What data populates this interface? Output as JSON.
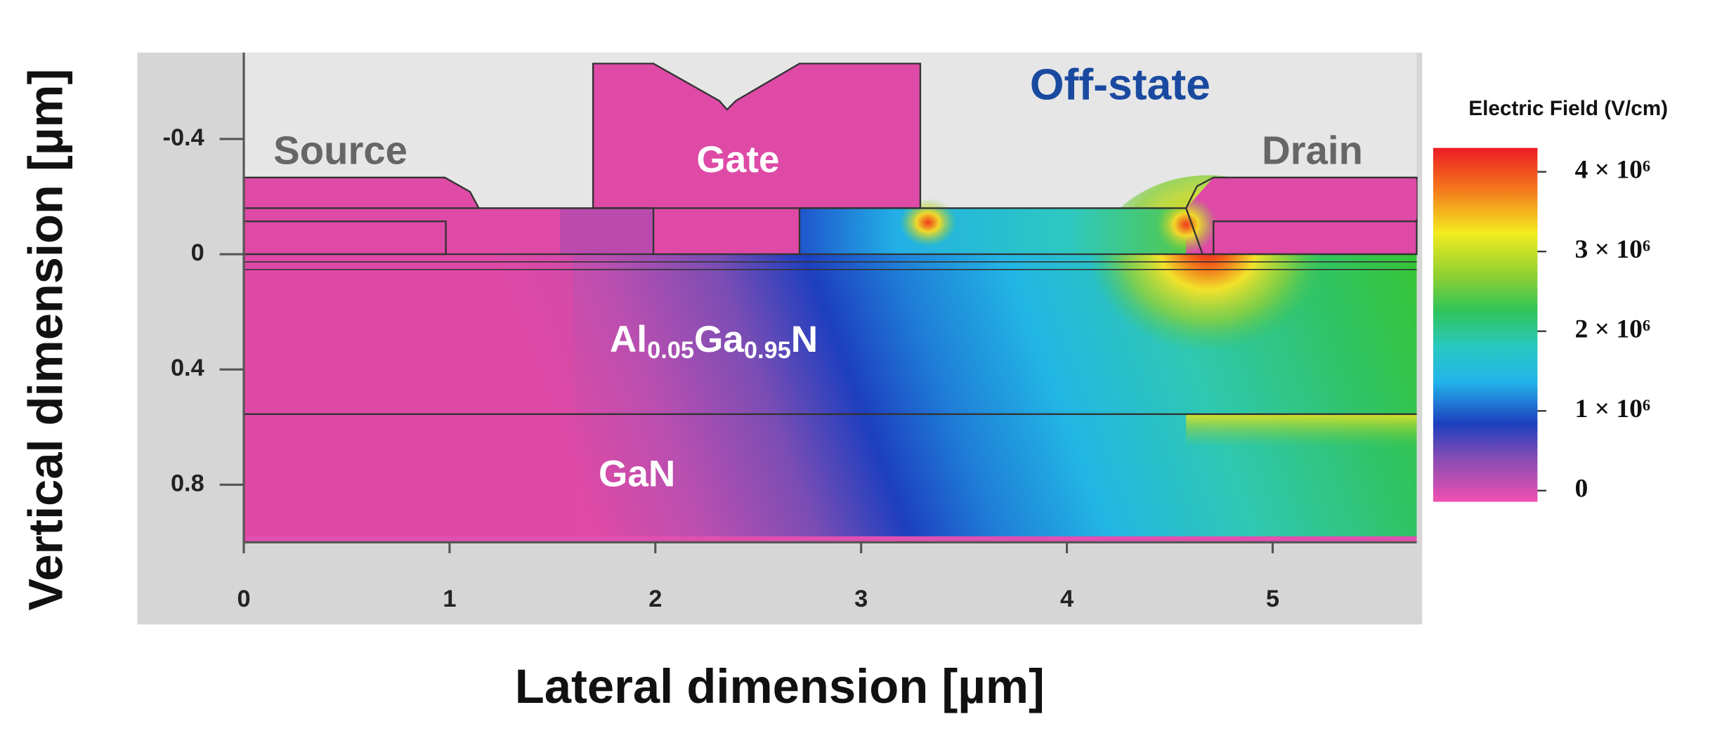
{
  "chart_data": {
    "type": "field_map",
    "title": "Off-state",
    "xlabel": "Lateral dimension [µm]",
    "ylabel": "Vertical dimension [µm]",
    "xlim": [
      0,
      5.7
    ],
    "xticks": [
      0,
      1,
      2,
      3,
      4,
      5
    ],
    "ylim": [
      -0.7,
      1.0
    ],
    "y_inverted": true,
    "yticks": [
      -0.4,
      0,
      0.4,
      0.8
    ],
    "regions": {
      "source": "Source",
      "gate": "Gate",
      "drain": "Drain",
      "barrier": [
        "Al",
        "0.05",
        "Ga",
        "0.95",
        "N"
      ],
      "buffer": "GaN"
    },
    "colorbar": {
      "title": "Electric Field (V/cm)",
      "lim": [
        -140000,
        4300000
      ],
      "ticks": [
        {
          "value": 4000000,
          "label": "4 × 10⁶"
        },
        {
          "value": 3000000,
          "label": "3 × 10⁶"
        },
        {
          "value": 2000000,
          "label": "2 × 10⁶"
        },
        {
          "value": 1000000,
          "label": "1 × 10⁶"
        },
        0
      ]
    }
  }
}
